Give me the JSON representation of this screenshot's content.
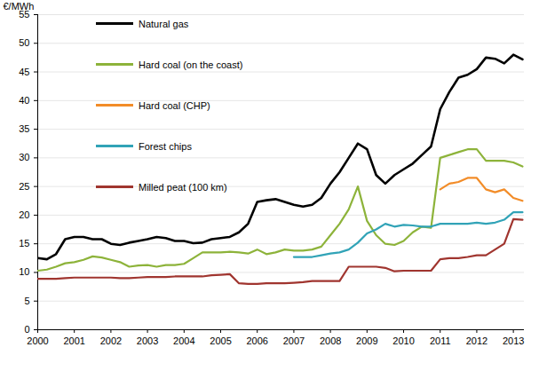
{
  "chart_data": {
    "type": "line",
    "y_label": "€/MWh",
    "x": [
      2000,
      2000.25,
      2000.5,
      2000.75,
      2001,
      2001.25,
      2001.5,
      2001.75,
      2002,
      2002.25,
      2002.5,
      2002.75,
      2003,
      2003.25,
      2003.5,
      2003.75,
      2004,
      2004.25,
      2004.5,
      2004.75,
      2005,
      2005.25,
      2005.5,
      2005.75,
      2006,
      2006.25,
      2006.5,
      2006.75,
      2007,
      2007.25,
      2007.5,
      2007.75,
      2008,
      2008.25,
      2008.5,
      2008.75,
      2009,
      2009.25,
      2009.5,
      2009.75,
      2010,
      2010.25,
      2010.5,
      2010.75,
      2011,
      2011.25,
      2011.5,
      2011.75,
      2012,
      2012.25,
      2012.5,
      2012.75,
      2013,
      2013.25
    ],
    "series": [
      {
        "name": "Natural gas",
        "color": "#000000",
        "values": [
          12.5,
          12.3,
          13.2,
          15.8,
          16.2,
          16.2,
          15.8,
          15.8,
          15.0,
          14.8,
          15.2,
          15.5,
          15.8,
          16.2,
          16.0,
          15.5,
          15.5,
          15.1,
          15.2,
          15.8,
          16.0,
          16.2,
          17.0,
          18.5,
          22.3,
          22.6,
          22.8,
          22.3,
          21.8,
          21.5,
          21.8,
          23.0,
          25.5,
          27.5,
          30.0,
          32.5,
          31.5,
          27.0,
          25.5,
          27.0,
          28.0,
          29.0,
          30.5,
          32.0,
          38.5,
          41.5,
          44.0,
          44.5,
          45.5,
          47.5,
          47.3,
          46.5,
          48.0,
          47.2
        ]
      },
      {
        "name": "Hard coal (on the coast)",
        "color": "#8db33a",
        "values": [
          10.3,
          10.5,
          11.0,
          11.6,
          11.8,
          12.2,
          12.8,
          12.6,
          12.2,
          11.8,
          11.0,
          11.2,
          11.3,
          11.0,
          11.3,
          11.3,
          11.5,
          12.5,
          13.5,
          13.5,
          13.5,
          13.6,
          13.5,
          13.3,
          14.0,
          13.2,
          13.5,
          14.0,
          13.8,
          13.8,
          14.0,
          14.5,
          16.5,
          18.5,
          21.0,
          25.0,
          19.0,
          16.5,
          15.0,
          14.8,
          15.5,
          17.0,
          18.0,
          17.8,
          30.0,
          30.5,
          31.0,
          31.5,
          31.5,
          29.5,
          29.5,
          29.5,
          29.2,
          28.5
        ]
      },
      {
        "name": "Hard coal (CHP)",
        "color": "#f28c28",
        "values": [
          null,
          null,
          null,
          null,
          null,
          null,
          null,
          null,
          null,
          null,
          null,
          null,
          null,
          null,
          null,
          null,
          null,
          null,
          null,
          null,
          null,
          null,
          null,
          null,
          null,
          null,
          null,
          null,
          null,
          null,
          null,
          null,
          null,
          null,
          null,
          null,
          null,
          null,
          null,
          null,
          null,
          null,
          null,
          null,
          24.5,
          25.5,
          25.8,
          26.5,
          26.5,
          24.5,
          24.0,
          24.5,
          23.0,
          22.5
        ]
      },
      {
        "name": "Forest chips",
        "color": "#31a3b7",
        "values": [
          null,
          null,
          null,
          null,
          null,
          null,
          null,
          null,
          null,
          null,
          null,
          null,
          null,
          null,
          null,
          null,
          null,
          null,
          null,
          null,
          null,
          null,
          null,
          null,
          null,
          null,
          null,
          null,
          12.7,
          12.7,
          12.7,
          13.0,
          13.3,
          13.5,
          14.0,
          15.2,
          16.8,
          17.5,
          18.5,
          18.0,
          18.3,
          18.2,
          18.0,
          18.0,
          18.5,
          18.5,
          18.5,
          18.5,
          18.7,
          18.5,
          18.7,
          19.2,
          20.5,
          20.5
        ]
      },
      {
        "name": "Milled peat (100 km)",
        "color": "#a0352f",
        "values": [
          8.9,
          8.9,
          8.9,
          9.0,
          9.1,
          9.1,
          9.1,
          9.1,
          9.1,
          9.0,
          9.0,
          9.1,
          9.2,
          9.2,
          9.2,
          9.3,
          9.3,
          9.3,
          9.3,
          9.5,
          9.6,
          9.7,
          8.1,
          8.0,
          8.0,
          8.1,
          8.1,
          8.1,
          8.2,
          8.3,
          8.5,
          8.5,
          8.5,
          8.5,
          11.0,
          11.0,
          11.0,
          11.0,
          10.8,
          10.2,
          10.3,
          10.3,
          10.3,
          10.3,
          12.3,
          12.5,
          12.5,
          12.7,
          13.0,
          13.0,
          14.0,
          15.0,
          19.3,
          19.2
        ]
      }
    ],
    "xlim": [
      2000,
      2013.3
    ],
    "xticks": [
      2000,
      2001,
      2002,
      2003,
      2004,
      2005,
      2006,
      2007,
      2008,
      2009,
      2010,
      2011,
      2012,
      2013
    ],
    "ylim": [
      0,
      55
    ],
    "yticks": [
      0,
      5,
      10,
      15,
      20,
      25,
      30,
      35,
      40,
      45,
      50,
      55
    ],
    "grid": true,
    "legend": "top-left"
  }
}
